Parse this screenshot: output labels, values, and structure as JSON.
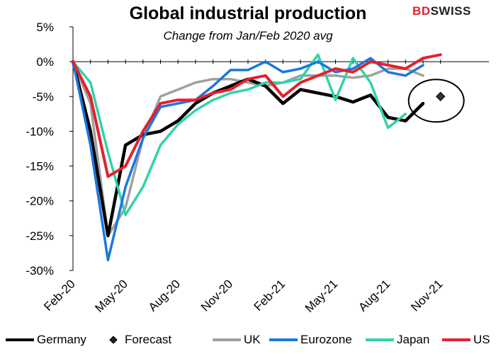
{
  "brand": {
    "part1": "BD",
    "part2": "SWISS"
  },
  "chart_data": {
    "type": "line",
    "title": "Global industrial production",
    "subtitle": "Change from Jan/Feb 2020 avg",
    "x": [
      "Feb-20",
      "Mar-20",
      "Apr-20",
      "May-20",
      "Jun-20",
      "Jul-20",
      "Aug-20",
      "Sep-20",
      "Oct-20",
      "Nov-20",
      "Dec-20",
      "Jan-21",
      "Feb-21",
      "Mar-21",
      "Apr-21",
      "May-21",
      "Jun-21",
      "Jul-21",
      "Aug-21",
      "Sep-21",
      "Oct-21",
      "Nov-21"
    ],
    "xtick_labels": [
      "Feb-20",
      "May-20",
      "Aug-20",
      "Nov-20",
      "Feb-21",
      "May-21",
      "Aug-21",
      "Nov-21"
    ],
    "yticks": [
      -30,
      -25,
      -20,
      -15,
      -10,
      -5,
      0,
      5
    ],
    "ytick_labels": [
      "-30%",
      "-25%",
      "-20%",
      "-15%",
      "-10%",
      "-5%",
      "0%",
      "5%"
    ],
    "ylim": [
      -30,
      5
    ],
    "grid": false,
    "legend_position": "bottom",
    "series": [
      {
        "name": "Germany",
        "color": "#000000",
        "values": [
          0,
          -10,
          -25,
          -12,
          -10.5,
          -10,
          -8.5,
          -6,
          -4.5,
          -3.5,
          -2.5,
          -3.5,
          -6,
          -4,
          -4.5,
          -5,
          -5.8,
          -4.8,
          -8,
          -8.5,
          -6,
          null
        ]
      },
      {
        "name": "UK",
        "color": "#a0a0a0",
        "values": [
          0,
          -6,
          -25,
          -21,
          -11,
          -5,
          -4,
          -3,
          -2.5,
          -2.5,
          -3,
          -3.5,
          -3,
          -2,
          -2,
          -2,
          -2.3,
          -2,
          -1,
          -1,
          -2,
          null
        ]
      },
      {
        "name": "Eurozone",
        "color": "#1a78e0",
        "values": [
          0,
          -12,
          -28.5,
          -18,
          -11,
          -6.5,
          -6,
          -5.5,
          -3.5,
          -1.2,
          -1.2,
          0,
          -1.5,
          -1,
          0,
          -1.5,
          -1,
          0.5,
          -1.5,
          -2,
          -0.5,
          null
        ]
      },
      {
        "name": "Japan",
        "color": "#2fd4a9",
        "values": [
          0,
          -3,
          -13,
          -22,
          -18,
          -12,
          -9,
          -7,
          -5.5,
          -4.5,
          -4,
          -3,
          -3,
          -2.5,
          1,
          -5.5,
          0.5,
          -3,
          -9.5,
          -7.5,
          null,
          null
        ]
      },
      {
        "name": "US",
        "color": "#e4202e",
        "values": [
          0,
          -5,
          -16.5,
          -15,
          -10,
          -6,
          -5.5,
          -5.5,
          -4.5,
          -4,
          -2.5,
          -2,
          -5,
          -3,
          -2,
          -1,
          -1.5,
          0,
          -0.5,
          -1,
          0.5,
          1
        ]
      }
    ],
    "forecast": {
      "name": "Forecast",
      "x": "Nov-21",
      "value": -5
    },
    "annotations": [
      {
        "type": "ellipse",
        "around": "Forecast"
      }
    ]
  },
  "legend": [
    "Germany",
    "Forecast",
    "UK",
    "Eurozone",
    "Japan",
    "US"
  ]
}
